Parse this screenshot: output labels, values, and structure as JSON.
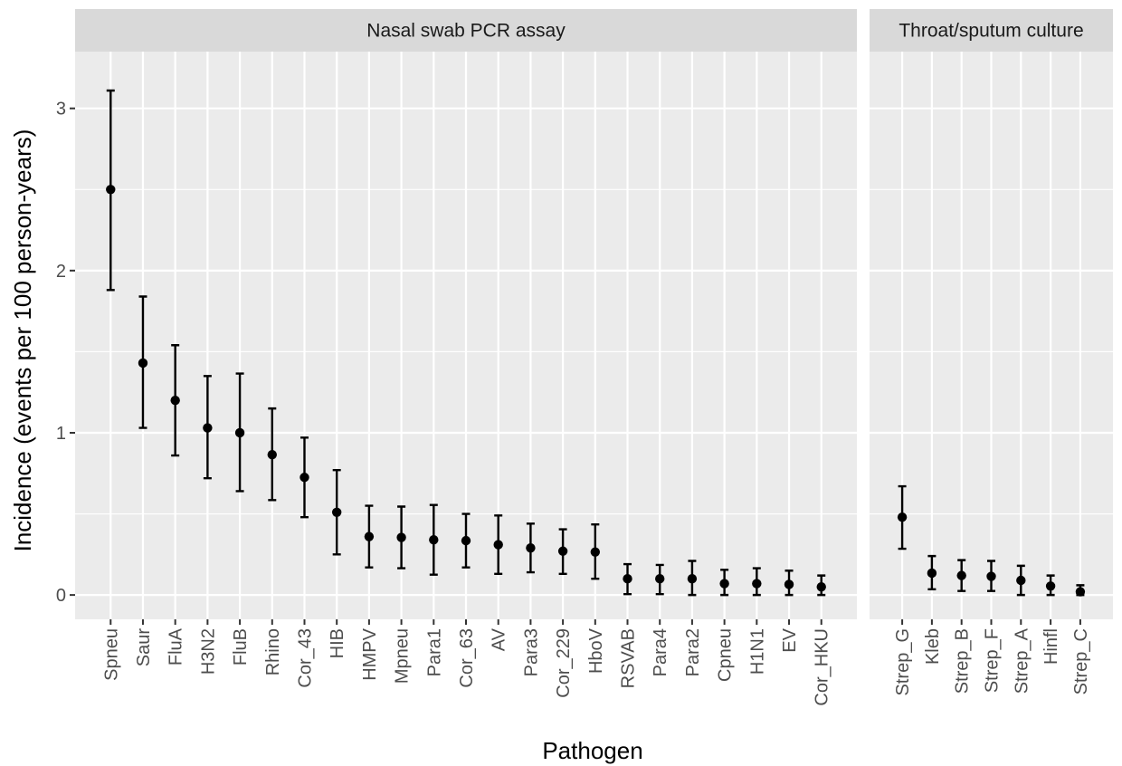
{
  "chart_data": {
    "type": "scatter",
    "subtype": "point-range (point estimate with error bars), faceted",
    "xlabel": "Pathogen",
    "ylabel": "Incidence (events per 100 person-years)",
    "ylim": [
      -0.15,
      3.35
    ],
    "yticks": [
      0,
      1,
      2,
      3
    ],
    "grid": true,
    "legend": "none",
    "point_color": "#000000",
    "panel_background": "#EBEBEB",
    "strip_background": "#D9D9D9",
    "facets": [
      {
        "title": "Nasal swab PCR assay",
        "categories": [
          "Spneu",
          "Saur",
          "FluA",
          "H3N2",
          "FluB",
          "Rhino",
          "Cor_43",
          "HIB",
          "HMPV",
          "Mpneu",
          "Para1",
          "Cor_63",
          "AV",
          "Para3",
          "Cor_229",
          "HboV",
          "RSVAB",
          "Para4",
          "Para2",
          "Cpneu",
          "H1N1",
          "EV",
          "Cor_HKU"
        ],
        "values": [
          2.5,
          1.43,
          1.2,
          1.03,
          1.0,
          0.865,
          0.725,
          0.51,
          0.36,
          0.355,
          0.34,
          0.335,
          0.31,
          0.29,
          0.27,
          0.265,
          0.1,
          0.1,
          0.1,
          0.07,
          0.07,
          0.065,
          0.05
        ],
        "lower": [
          1.88,
          1.03,
          0.86,
          0.72,
          0.64,
          0.585,
          0.48,
          0.25,
          0.17,
          0.165,
          0.125,
          0.17,
          0.13,
          0.14,
          0.13,
          0.1,
          0.005,
          0.005,
          0.0,
          0.0,
          0.0,
          0.0,
          0.0
        ],
        "upper": [
          3.11,
          1.84,
          1.54,
          1.35,
          1.365,
          1.15,
          0.97,
          0.77,
          0.55,
          0.545,
          0.555,
          0.5,
          0.49,
          0.44,
          0.405,
          0.435,
          0.19,
          0.185,
          0.21,
          0.155,
          0.165,
          0.15,
          0.12
        ]
      },
      {
        "title": "Throat/sputum culture",
        "categories": [
          "Strep_G",
          "Kleb",
          "Strep_B",
          "Strep_F",
          "Strep_A",
          "Hinfl",
          "Strep_C"
        ],
        "values": [
          0.48,
          0.135,
          0.12,
          0.115,
          0.09,
          0.055,
          0.02
        ],
        "lower": [
          0.285,
          0.035,
          0.025,
          0.025,
          0.0,
          0.0,
          0.0
        ],
        "upper": [
          0.67,
          0.24,
          0.215,
          0.21,
          0.18,
          0.12,
          0.06
        ]
      }
    ]
  }
}
